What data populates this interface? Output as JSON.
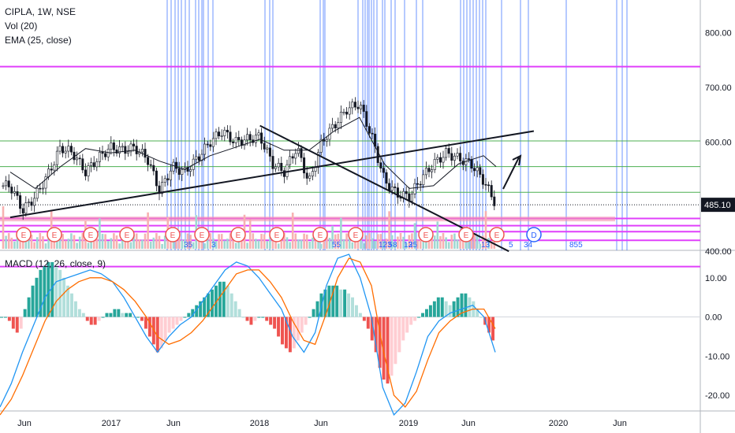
{
  "header": {
    "symbol_line": "CIPLA, 1W, NSE",
    "vol_label": "Vol (20)",
    "ema_label": "EMA (25, close)",
    "macd_label": "MACD (12, 26, close, 9)"
  },
  "colors": {
    "up": "#26a69a",
    "down": "#ef5350",
    "vol_up": "#9fd8d2",
    "vol_down": "#f7b1b1",
    "macd_line": "#2196f3",
    "signal_line": "#ff6d00",
    "hist_up_strong": "#26a69a",
    "hist_up_weak": "#b2dfdb",
    "hist_down_strong": "#ef5350",
    "hist_down_weak": "#ffcdd2",
    "magenta": "#e040fb",
    "green_line": "#4caf50",
    "blue_line": "#2962ff",
    "price_tag_bg": "#131722"
  },
  "chart_data": [
    {
      "type": "line",
      "title": "CIPLA, 1W, NSE",
      "series": [
        {
          "name": "EMA (25, close)",
          "x": [
            "2016-05",
            "2016-07",
            "2016-09",
            "2016-11",
            "2017-01",
            "2017-03",
            "2017-05",
            "2017-07",
            "2017-09",
            "2017-11",
            "2018-01",
            "2018-03",
            "2018-05",
            "2018-07",
            "2018-09",
            "2018-11",
            "2019-01",
            "2019-03",
            "2019-05",
            "2019-07",
            "2019-08"
          ],
          "values": [
            545,
            515,
            555,
            588,
            580,
            585,
            565,
            550,
            575,
            590,
            605,
            585,
            585,
            620,
            645,
            560,
            515,
            520,
            560,
            575,
            555
          ]
        },
        {
          "name": "close",
          "x": [
            "2016-05",
            "2016-06",
            "2016-07",
            "2016-08",
            "2016-09",
            "2016-10",
            "2016-11",
            "2016-12",
            "2017-01",
            "2017-02",
            "2017-03",
            "2017-04",
            "2017-05",
            "2017-06",
            "2017-07",
            "2017-08",
            "2017-09",
            "2017-10",
            "2017-11",
            "2017-12",
            "2018-01",
            "2018-02",
            "2018-03",
            "2018-04",
            "2018-05",
            "2018-06",
            "2018-07",
            "2018-08",
            "2018-09",
            "2018-10",
            "2018-11",
            "2018-12",
            "2019-01",
            "2019-02",
            "2019-03",
            "2019-04",
            "2019-05",
            "2019-06",
            "2019-07",
            "2019-08"
          ],
          "values": [
            520,
            475,
            500,
            540,
            590,
            580,
            545,
            570,
            590,
            585,
            590,
            570,
            510,
            555,
            545,
            570,
            600,
            620,
            600,
            605,
            610,
            560,
            545,
            590,
            525,
            600,
            630,
            660,
            670,
            610,
            530,
            505,
            500,
            535,
            560,
            580,
            570,
            560,
            530,
            485.1
          ]
        }
      ],
      "last_price": "485.10",
      "ylim": [
        370,
        860
      ],
      "ytick_labels": [
        "800.00",
        "700.00",
        "600.00",
        "485.10",
        "400.00"
      ],
      "xtick_labels": [
        "Jun",
        "2017",
        "Jun",
        "2018",
        "Jun",
        "2019",
        "Jun",
        "2020",
        "Jun"
      ],
      "horizontal_levels": [
        {
          "value": 738,
          "color": "magenta"
        },
        {
          "value": 602,
          "color": "green"
        },
        {
          "value": 555,
          "color": "green"
        },
        {
          "value": 508,
          "color": "green"
        },
        {
          "value": 485.1,
          "color": "dotted"
        },
        {
          "value": 460,
          "color": "magenta"
        },
        {
          "value": 447,
          "color": "magenta"
        },
        {
          "value": 436,
          "color": "magenta"
        },
        {
          "value": 420,
          "color": "magenta"
        },
        {
          "value": 372,
          "color": "magenta"
        }
      ],
      "trendlines": [
        {
          "from": [
            "2016-05",
            462
          ],
          "to": [
            "2019-11",
            620
          ]
        },
        {
          "from": [
            "2018-01",
            630
          ],
          "to": [
            "2019-09",
            400
          ]
        }
      ],
      "earnings_markers": [
        "E",
        "E",
        "E",
        "E",
        "E",
        "E",
        "E",
        "E",
        "E",
        "E",
        "E",
        "E",
        "E",
        "D",
        "E"
      ],
      "cycle_labels": [
        "35",
        "3",
        "55",
        "123",
        "5",
        "8",
        "13",
        "25",
        "13",
        "5",
        "34",
        "855"
      ],
      "grid": false,
      "legend": "top-left"
    },
    {
      "type": "bar",
      "title": "MACD (12, 26, close, 9)",
      "ylim": [
        -24,
        17
      ],
      "ytick_labels": [
        "10.00",
        "0.00",
        "-10.00",
        "-20.00"
      ],
      "histogram": [
        0,
        0,
        -1,
        -3,
        -4,
        -3,
        2,
        5,
        8,
        10,
        12,
        13,
        14,
        14,
        13,
        12,
        10,
        8,
        6,
        4,
        2,
        1,
        -1,
        -2,
        -2,
        -1,
        0,
        1,
        1,
        2,
        2,
        1,
        1,
        1,
        0,
        0,
        -1,
        -3,
        -5,
        -7,
        -9,
        -8,
        -6,
        -4,
        -3,
        -2,
        -1,
        0,
        1,
        2,
        3,
        4,
        5,
        6,
        7,
        8,
        9,
        9,
        8,
        6,
        4,
        2,
        0,
        -1,
        -2,
        -1,
        0,
        0,
        -1,
        -2,
        -3,
        -5,
        -7,
        -8,
        -9,
        -8,
        -6,
        -4,
        -2,
        0,
        2,
        4,
        6,
        7,
        8,
        8,
        8,
        7,
        7,
        6,
        5,
        3,
        1,
        -1,
        -3,
        -6,
        -9,
        -13,
        -16,
        -17,
        -15,
        -12,
        -9,
        -6,
        -4,
        -2,
        -1,
        0,
        1,
        2,
        3,
        4,
        5,
        5,
        4,
        3,
        4,
        5,
        6,
        6,
        5,
        4,
        2,
        0,
        -2,
        -4,
        -6
      ],
      "series": [
        {
          "name": "MACD",
          "values": [
            -23,
            -17,
            -9,
            -2,
            5,
            9,
            10,
            11,
            12,
            11,
            9,
            5,
            0,
            -5,
            -9,
            -5,
            -2,
            0,
            4,
            8,
            12,
            14,
            13,
            10,
            6,
            2,
            -5,
            -9,
            -4,
            8,
            15,
            16,
            10,
            0,
            -18,
            -25,
            -22,
            -14,
            -5,
            -1,
            1,
            2,
            3,
            0,
            -9
          ]
        },
        {
          "name": "Signal",
          "values": [
            -25,
            -21,
            -15,
            -8,
            -1,
            4,
            7,
            9,
            10,
            10,
            9,
            7,
            4,
            0,
            -5,
            -7,
            -6,
            -4,
            -1,
            3,
            7,
            11,
            12,
            12,
            9,
            5,
            -1,
            -6,
            -7,
            1,
            10,
            15,
            14,
            8,
            -8,
            -20,
            -23,
            -19,
            -11,
            -4,
            -1,
            1,
            2,
            2,
            -3
          ]
        }
      ]
    }
  ]
}
